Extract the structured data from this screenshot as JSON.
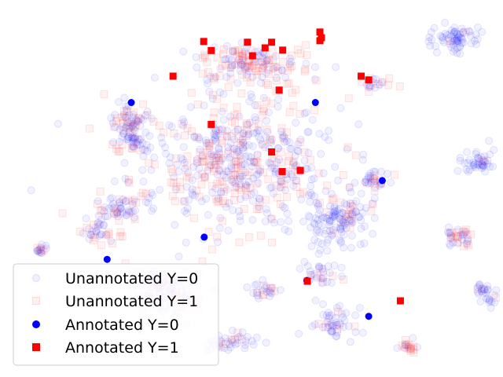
{
  "chart_data": {
    "type": "scatter",
    "title": "",
    "xlabel": "",
    "ylabel": "",
    "axes_visible": false,
    "grid": false,
    "xlim": [
      0,
      100
    ],
    "ylim": [
      0,
      100
    ],
    "legend_position": "lower-left",
    "colors": {
      "unannotated_y0": "#0000ff",
      "unannotated_y1": "#ff0000",
      "annotated_y0": "#0000ff",
      "annotated_y1": "#ff0000"
    },
    "background_clusters": [
      {
        "cx": 46,
        "cy": 57,
        "rx": 18,
        "ry": 16,
        "n": 520,
        "red_frac": 0.38
      },
      {
        "cx": 50,
        "cy": 83,
        "rx": 11,
        "ry": 5,
        "n": 150,
        "red_frac": 0.55
      },
      {
        "cx": 67,
        "cy": 42,
        "rx": 6,
        "ry": 7,
        "n": 140,
        "red_frac": 0.15
      },
      {
        "cx": 33,
        "cy": 22,
        "rx": 7,
        "ry": 6,
        "n": 110,
        "red_frac": 0.3
      },
      {
        "cx": 26,
        "cy": 68,
        "rx": 4,
        "ry": 4,
        "n": 60,
        "red_frac": 0.35
      },
      {
        "cx": 91,
        "cy": 90,
        "rx": 4,
        "ry": 3,
        "n": 70,
        "red_frac": 0.08
      },
      {
        "cx": 95,
        "cy": 57,
        "rx": 3,
        "ry": 3,
        "n": 45,
        "red_frac": 0.05
      },
      {
        "cx": 91,
        "cy": 37,
        "rx": 2.5,
        "ry": 2.5,
        "n": 35,
        "red_frac": 0.4
      },
      {
        "cx": 97,
        "cy": 22,
        "rx": 2,
        "ry": 2.5,
        "n": 30,
        "red_frac": 0.1
      },
      {
        "cx": 8,
        "cy": 34,
        "rx": 1.4,
        "ry": 1.2,
        "n": 16,
        "red_frac": 0.3
      },
      {
        "cx": 66,
        "cy": 14,
        "rx": 4,
        "ry": 4,
        "n": 50,
        "red_frac": 0.15
      },
      {
        "cx": 46,
        "cy": 9,
        "rx": 4,
        "ry": 3,
        "n": 40,
        "red_frac": 0.2
      },
      {
        "cx": 24,
        "cy": 45,
        "rx": 5,
        "ry": 4,
        "n": 60,
        "red_frac": 0.25
      },
      {
        "cx": 75,
        "cy": 52,
        "rx": 2.5,
        "ry": 2.5,
        "n": 30,
        "red_frac": 0.1
      },
      {
        "cx": 81,
        "cy": 8,
        "rx": 2,
        "ry": 1.5,
        "n": 20,
        "red_frac": 0.5
      },
      {
        "cx": 53,
        "cy": 23,
        "rx": 3,
        "ry": 2,
        "n": 25,
        "red_frac": 0.3
      },
      {
        "cx": 64,
        "cy": 27,
        "rx": 3,
        "ry": 3,
        "n": 30,
        "red_frac": 0.3
      },
      {
        "cx": 26,
        "cy": 62,
        "rx": 4,
        "ry": 3,
        "n": 40,
        "red_frac": 0.4
      },
      {
        "cx": 75,
        "cy": 78,
        "rx": 3,
        "ry": 2,
        "n": 20,
        "red_frac": 0.5
      },
      {
        "cx": 20,
        "cy": 38,
        "rx": 5,
        "ry": 4,
        "n": 35,
        "red_frac": 0.3
      }
    ],
    "series": [
      {
        "name": "Unannotated Y=0",
        "marker": "circle",
        "alpha": 0.07
      },
      {
        "name": "Unannotated Y=1",
        "marker": "square",
        "alpha": 0.07
      },
      {
        "name": "Annotated Y=0",
        "marker": "circle",
        "points": [
          [
            26.1,
            72.8
          ],
          [
            62.7,
            72.8
          ],
          [
            76.0,
            52.1
          ],
          [
            40.6,
            37.1
          ],
          [
            21.3,
            31.2
          ],
          [
            61.0,
            25.6
          ],
          [
            73.3,
            16.1
          ]
        ]
      },
      {
        "name": "Annotated Y=1",
        "marker": "square",
        "points": [
          [
            40.5,
            89.0
          ],
          [
            42.0,
            86.6
          ],
          [
            49.2,
            88.8
          ],
          [
            50.2,
            85.2
          ],
          [
            52.7,
            87.3
          ],
          [
            54.0,
            88.8
          ],
          [
            56.2,
            86.7
          ],
          [
            63.6,
            91.5
          ],
          [
            63.9,
            90.0
          ],
          [
            63.6,
            89.2
          ],
          [
            34.4,
            79.8
          ],
          [
            71.8,
            79.8
          ],
          [
            73.3,
            78.8
          ],
          [
            55.5,
            76.1
          ],
          [
            42.0,
            67.0
          ],
          [
            54.0,
            59.7
          ],
          [
            56.1,
            54.5
          ],
          [
            59.7,
            54.8
          ],
          [
            61.1,
            25.4
          ],
          [
            79.6,
            20.2
          ]
        ]
      }
    ]
  }
}
